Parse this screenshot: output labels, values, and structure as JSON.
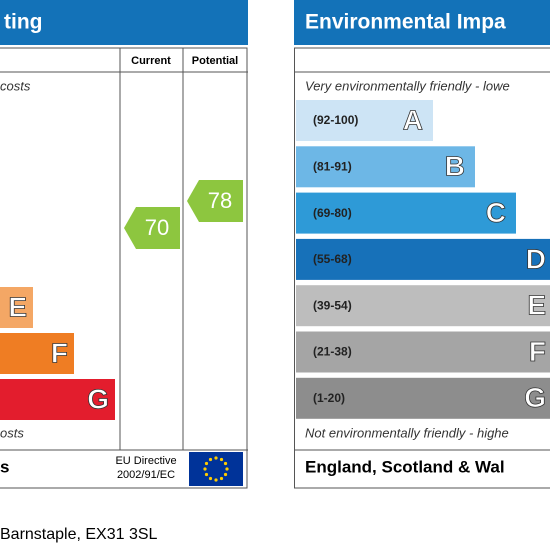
{
  "left": {
    "title": "ting",
    "columns": [
      "Current",
      "Potential"
    ],
    "top_note": "costs",
    "bands": [
      {
        "letter": "E",
        "color": "#f4a765",
        "width": 33
      },
      {
        "letter": "F",
        "color": "#ef7d23",
        "width": 74
      },
      {
        "letter": "G",
        "color": "#e31d2d",
        "width": 115
      }
    ],
    "bottom_note": "osts",
    "footer": "s",
    "directive": [
      "EU Directive",
      "2002/91/EC"
    ],
    "current": "70",
    "potential": "78",
    "rating_color": "#8dc63f"
  },
  "right": {
    "title": "Environmental Impa",
    "top_note": "Very environmentally friendly - lowe",
    "bands": [
      {
        "range": "(92-100)",
        "letter": "A",
        "color": "#cde4f5",
        "width": 137
      },
      {
        "range": "(81-91)",
        "letter": "B",
        "color": "#6db7e6",
        "width": 179
      },
      {
        "range": "(69-80)",
        "letter": "C",
        "color": "#2e9ad7",
        "width": 220
      },
      {
        "range": "(55-68)",
        "letter": "D",
        "color": "#1771b9",
        "width": 260
      },
      {
        "range": "(39-54)",
        "letter": "E",
        "color": "#bdbdbd",
        "width": 260
      },
      {
        "range": "(21-38)",
        "letter": "F",
        "color": "#a5a5a5",
        "width": 260
      },
      {
        "range": "(1-20)",
        "letter": "G",
        "color": "#8d8d8d",
        "width": 260
      }
    ],
    "bottom_note": "Not environmentally friendly - highe",
    "footer": "England, Scotland & Wal"
  },
  "address": "Barnstaple, EX31 3SL"
}
